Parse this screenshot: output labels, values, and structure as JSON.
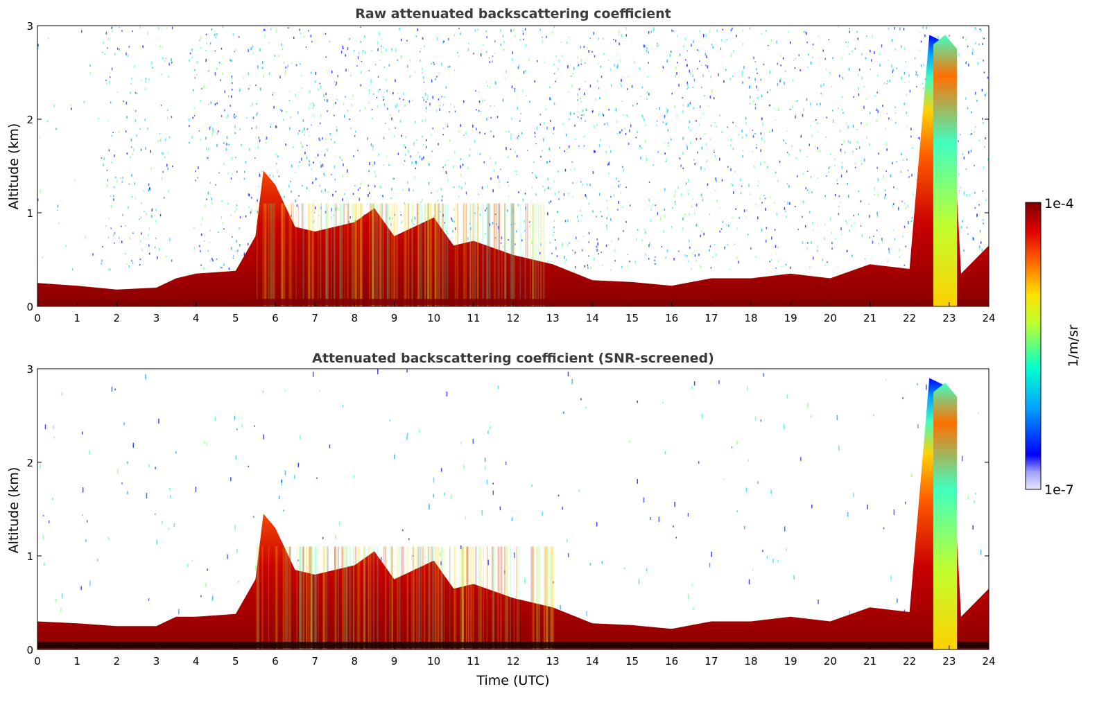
{
  "chart_data": [
    {
      "type": "heatmap",
      "title": "Raw attenuated backscattering coefficient",
      "xlabel": "",
      "ylabel": "Altitude (km)",
      "xlim": [
        0,
        24
      ],
      "ylim": [
        0,
        3
      ],
      "xticks": [
        "0",
        "1",
        "2",
        "3",
        "4",
        "5",
        "6",
        "7",
        "8",
        "9",
        "10",
        "11",
        "12",
        "13",
        "14",
        "15",
        "16",
        "17",
        "18",
        "19",
        "20",
        "21",
        "22",
        "23",
        "24"
      ],
      "yticks": [
        "0",
        "1",
        "2",
        "3"
      ],
      "boundary_layer_top_km": {
        "time_h": [
          0,
          1,
          2,
          3,
          3.5,
          4,
          5,
          5.5,
          5.7,
          6,
          6.5,
          7,
          8,
          8.5,
          9,
          10,
          10.5,
          11,
          12,
          12.5,
          13,
          14,
          15,
          16,
          17,
          18,
          19,
          20,
          21,
          22,
          22.5,
          23,
          23.3,
          24
        ],
        "alt_km": [
          0.25,
          0.22,
          0.18,
          0.2,
          0.3,
          0.35,
          0.38,
          0.75,
          1.45,
          1.3,
          0.85,
          0.8,
          0.9,
          1.05,
          0.75,
          0.95,
          0.65,
          0.7,
          0.55,
          0.5,
          0.45,
          0.28,
          0.26,
          0.22,
          0.3,
          0.3,
          0.35,
          0.3,
          0.45,
          0.4,
          2.9,
          2.8,
          0.35,
          0.65
        ]
      },
      "plume_window_h": [
        22.6,
        23.2
      ],
      "plume_top_km": 2.9
    },
    {
      "type": "heatmap",
      "title": "Attenuated backscattering coefficient (SNR-screened)",
      "xlabel": "Time (UTC)",
      "ylabel": "Altitude (km)",
      "xlim": [
        0,
        24
      ],
      "ylim": [
        0,
        3
      ],
      "xticks": [
        "0",
        "1",
        "2",
        "3",
        "4",
        "5",
        "6",
        "7",
        "8",
        "9",
        "10",
        "11",
        "12",
        "13",
        "14",
        "15",
        "16",
        "17",
        "18",
        "19",
        "20",
        "21",
        "22",
        "23",
        "24"
      ],
      "yticks": [
        "0",
        "1",
        "2",
        "3"
      ],
      "boundary_layer_top_km": {
        "time_h": [
          0,
          1,
          2,
          3,
          3.5,
          4,
          5,
          5.5,
          5.7,
          6,
          6.5,
          7,
          8,
          8.5,
          9,
          10,
          10.5,
          11,
          12,
          12.5,
          13,
          14,
          15,
          16,
          17,
          18,
          19,
          20,
          21,
          22,
          22.5,
          23,
          23.3,
          24
        ],
        "alt_km": [
          0.3,
          0.28,
          0.25,
          0.25,
          0.35,
          0.35,
          0.38,
          0.75,
          1.45,
          1.3,
          0.85,
          0.8,
          0.9,
          1.05,
          0.75,
          0.95,
          0.65,
          0.7,
          0.55,
          0.5,
          0.45,
          0.28,
          0.26,
          0.22,
          0.3,
          0.3,
          0.35,
          0.3,
          0.45,
          0.4,
          2.9,
          2.8,
          0.35,
          0.65
        ]
      },
      "plume_window_h": [
        22.6,
        23.2
      ],
      "plume_top_km": 2.85
    }
  ],
  "colorbar": {
    "label": "1/m/sr",
    "max_label": "1e-4",
    "min_label": "1e-7",
    "scale": "log",
    "colormap": "jet",
    "colors": [
      "#e8e8f8",
      "#0000ff",
      "#00b8ff",
      "#40ffc0",
      "#c8ff30",
      "#ffd000",
      "#ff6000",
      "#e00000",
      "#800000"
    ]
  }
}
